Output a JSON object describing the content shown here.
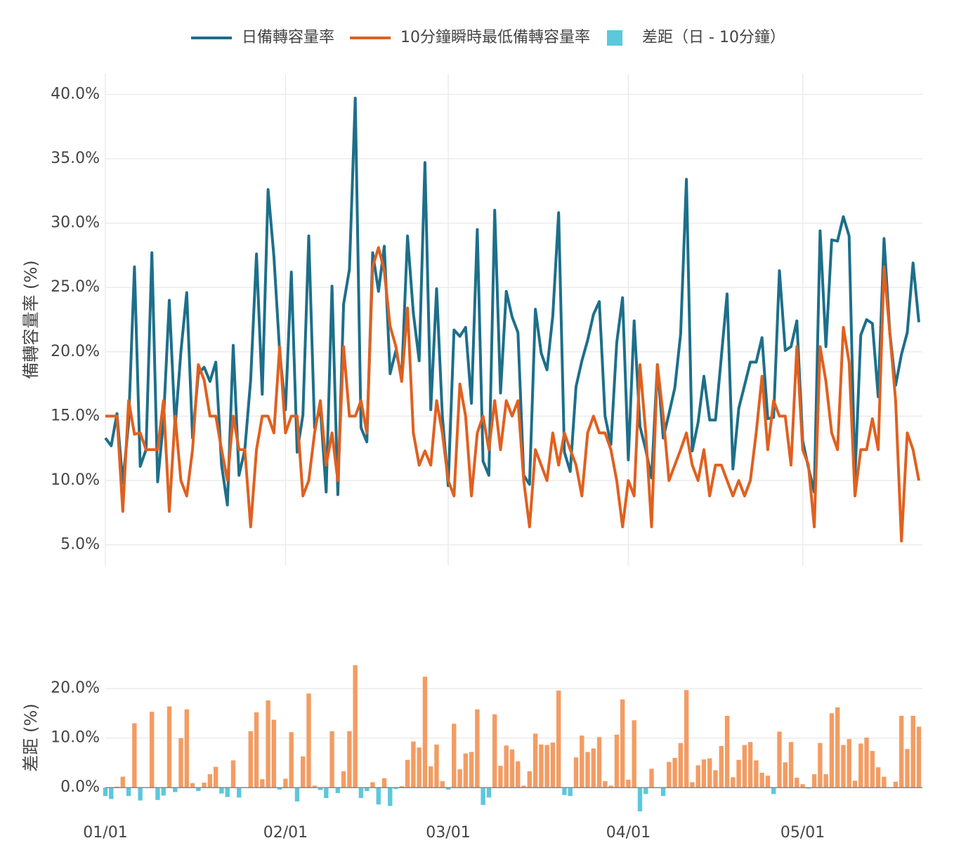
{
  "chart_data": [
    {
      "type": "line",
      "ylabel": "備轉容量率 (%)",
      "x": [
        "01/01",
        "01/02",
        "01/03",
        "01/04",
        "01/05",
        "01/06",
        "01/07",
        "01/08",
        "01/09",
        "01/10",
        "01/11",
        "01/12",
        "01/13",
        "01/14",
        "01/15",
        "01/16",
        "01/17",
        "01/18",
        "01/19",
        "01/20",
        "01/21",
        "01/22",
        "01/23",
        "01/24",
        "01/25",
        "01/26",
        "01/27",
        "01/28",
        "01/29",
        "01/30",
        "01/31",
        "02/01",
        "02/02",
        "02/03",
        "02/04",
        "02/05",
        "02/06",
        "02/07",
        "02/08",
        "02/09",
        "02/10",
        "02/11",
        "02/12",
        "02/13",
        "02/14",
        "02/15",
        "02/16",
        "02/17",
        "02/18",
        "02/19",
        "02/20",
        "02/21",
        "02/22",
        "02/23",
        "02/24",
        "02/25",
        "02/26",
        "02/27",
        "02/28",
        "03/01",
        "03/02",
        "03/03",
        "03/04",
        "03/05",
        "03/06",
        "03/07",
        "03/08",
        "03/09",
        "03/10",
        "03/11",
        "03/12",
        "03/13",
        "03/14",
        "03/15",
        "03/16",
        "03/17",
        "03/18",
        "03/19",
        "03/20",
        "03/21",
        "03/22",
        "03/23",
        "03/24",
        "03/25",
        "03/26",
        "03/27",
        "03/28",
        "03/29",
        "03/30",
        "03/31",
        "04/01",
        "04/02",
        "04/03",
        "04/04",
        "04/05",
        "04/06",
        "04/07",
        "04/08",
        "04/09",
        "04/10",
        "04/11",
        "04/12",
        "04/13",
        "04/14",
        "04/15",
        "04/16",
        "04/17",
        "04/18",
        "04/19",
        "04/20",
        "04/21",
        "04/22",
        "04/23",
        "04/24",
        "04/25",
        "04/26",
        "04/27",
        "04/28",
        "04/29",
        "04/30",
        "05/01",
        "05/02",
        "05/03",
        "05/04",
        "05/05",
        "05/06",
        "05/07",
        "05/08",
        "05/09",
        "05/10",
        "05/11",
        "05/12",
        "05/13",
        "05/14",
        "05/15",
        "05/16",
        "05/17",
        "05/18",
        "05/19",
        "05/20",
        "05/21"
      ],
      "series": [
        {
          "name": "日備轉容量率",
          "color": "#1d6f8a",
          "values": [
            13.3,
            12.7,
            15.2,
            9.8,
            14.5,
            26.6,
            11.1,
            12.4,
            27.7,
            9.9,
            14.6,
            24.0,
            14.1,
            20.0,
            24.6,
            13.3,
            18.3,
            18.8,
            17.7,
            19.2,
            11.2,
            8.1,
            20.5,
            10.4,
            12.4,
            17.8,
            27.6,
            16.7,
            32.6,
            27.4,
            20.0,
            15.5,
            26.2,
            12.2,
            15.1,
            29.0,
            14.1,
            15.7,
            9.1,
            25.1,
            8.9,
            23.7,
            26.4,
            39.7,
            14.1,
            13.0,
            27.7,
            24.7,
            28.2,
            18.3,
            20.1,
            18.0,
            29.0,
            23.0,
            19.3,
            34.7,
            15.5,
            24.9,
            15.0,
            9.6,
            21.7,
            21.2,
            21.9,
            16.0,
            29.5,
            11.5,
            10.4,
            31.0,
            16.8,
            24.7,
            22.7,
            21.5,
            10.4,
            9.7,
            23.3,
            19.9,
            18.6,
            22.8,
            30.8,
            12.2,
            10.7,
            17.3,
            19.3,
            20.9,
            22.9,
            23.9,
            15.0,
            12.8,
            20.7,
            24.2,
            11.6,
            22.4,
            14.2,
            12.4,
            10.2,
            19.0,
            13.3,
            15.2,
            17.2,
            21.4,
            33.4,
            12.3,
            14.5,
            18.1,
            14.7,
            14.7,
            19.6,
            24.5,
            10.9,
            15.6,
            17.4,
            19.2,
            19.2,
            21.1,
            14.8,
            14.9,
            26.3,
            20.1,
            20.4,
            22.4,
            13.1,
            11.0,
            9.1,
            29.4,
            20.4,
            28.7,
            28.6,
            30.5,
            29.0,
            10.2,
            21.3,
            22.5,
            22.2,
            16.5,
            28.8,
            21.5,
            17.4,
            19.8,
            21.5,
            26.9,
            22.3
          ]
        },
        {
          "name": "10分鐘瞬時最低備轉容量率",
          "color": "#e0601f",
          "values": [
            15,
            15,
            15,
            7.6,
            16.2,
            13.6,
            13.7,
            12.4,
            12.4,
            12.4,
            16.2,
            7.6,
            15,
            10,
            8.8,
            12.4,
            19,
            17.8,
            15,
            15,
            12.4,
            10,
            15,
            12.4,
            12.4,
            6.4,
            12.4,
            15,
            15,
            13.7,
            20.4,
            13.7,
            15,
            15,
            8.8,
            10,
            13.7,
            16.2,
            11.2,
            13.7,
            10,
            20.4,
            15,
            15,
            16.2,
            13.7,
            26.6,
            28.1,
            26.3,
            22,
            20.4,
            17.7,
            23.4,
            13.7,
            11.2,
            12.3,
            11.2,
            16.2,
            13.7,
            10,
            8.8,
            17.5,
            15,
            8.8,
            13.7,
            15,
            12.4,
            16.2,
            12.4,
            16.2,
            15,
            16.2,
            10,
            6.4,
            12.4,
            11.2,
            10,
            13.7,
            11.2,
            13.7,
            12.4,
            11.2,
            8.8,
            13.7,
            15,
            13.7,
            13.7,
            12.4,
            10,
            6.4,
            10,
            8.8,
            19,
            13.7,
            6.4,
            19,
            15,
            10,
            11.2,
            12.4,
            13.7,
            11.2,
            10,
            12.4,
            8.8,
            11.2,
            11.2,
            10,
            8.8,
            10,
            8.8,
            10,
            13.7,
            18.1,
            12.4,
            16.2,
            15,
            15,
            11.2,
            20.4,
            12.4,
            11.2,
            6.4,
            20.4,
            17.7,
            13.7,
            12.4,
            21.9,
            19.2,
            8.8,
            12.4,
            12.4,
            14.8,
            12.4,
            26.6,
            21.5,
            16.2,
            5.3,
            13.7,
            12.4,
            10
          ]
        }
      ],
      "ylim": [
        3.4,
        41.6
      ],
      "yticks": [
        {
          "value": 5,
          "label": "5.0%"
        },
        {
          "value": 10,
          "label": "10.0%"
        },
        {
          "value": 15,
          "label": "15.0%"
        },
        {
          "value": 20,
          "label": "20.0%"
        },
        {
          "value": 25,
          "label": "25.0%"
        },
        {
          "value": 30,
          "label": "30.0%"
        },
        {
          "value": 35,
          "label": "35.0%"
        },
        {
          "value": 40,
          "label": "40.0%"
        }
      ],
      "grid": true
    },
    {
      "type": "bar",
      "ylabel": "差距 (%)",
      "x": [
        "01/01",
        "01/02",
        "01/03",
        "01/04",
        "01/05",
        "01/06",
        "01/07",
        "01/08",
        "01/09",
        "01/10",
        "01/11",
        "01/12",
        "01/13",
        "01/14",
        "01/15",
        "01/16",
        "01/17",
        "01/18",
        "01/19",
        "01/20",
        "01/21",
        "01/22",
        "01/23",
        "01/24",
        "01/25",
        "01/26",
        "01/27",
        "01/28",
        "01/29",
        "01/30",
        "01/31",
        "02/01",
        "02/02",
        "02/03",
        "02/04",
        "02/05",
        "02/06",
        "02/07",
        "02/08",
        "02/09",
        "02/10",
        "02/11",
        "02/12",
        "02/13",
        "02/14",
        "02/15",
        "02/16",
        "02/17",
        "02/18",
        "02/19",
        "02/20",
        "02/21",
        "02/22",
        "02/23",
        "02/24",
        "02/25",
        "02/26",
        "02/27",
        "02/28",
        "03/01",
        "03/02",
        "03/03",
        "03/04",
        "03/05",
        "03/06",
        "03/07",
        "03/08",
        "03/09",
        "03/10",
        "03/11",
        "03/12",
        "03/13",
        "03/14",
        "03/15",
        "03/16",
        "03/17",
        "03/18",
        "03/19",
        "03/20",
        "03/21",
        "03/22",
        "03/23",
        "03/24",
        "03/25",
        "03/26",
        "03/27",
        "03/28",
        "03/29",
        "03/30",
        "03/31",
        "04/01",
        "04/02",
        "04/03",
        "04/04",
        "04/05",
        "04/06",
        "04/07",
        "04/08",
        "04/09",
        "04/10",
        "04/11",
        "04/12",
        "04/13",
        "04/14",
        "04/15",
        "04/16",
        "04/17",
        "04/18",
        "04/19",
        "04/20",
        "04/21",
        "04/22",
        "04/23",
        "04/24",
        "04/25",
        "04/26",
        "04/27",
        "04/28",
        "04/29",
        "04/30",
        "05/01",
        "05/02",
        "05/03",
        "05/04",
        "05/05",
        "05/06",
        "05/07",
        "05/08",
        "05/09",
        "05/10",
        "05/11",
        "05/12",
        "05/13",
        "05/14",
        "05/15",
        "05/16",
        "05/17",
        "05/18",
        "05/19",
        "05/20",
        "05/21"
      ],
      "series": [
        {
          "name": "差距（日 - 10分鐘）",
          "color": "#5bc8dc",
          "positive_color": "#f39c63",
          "values": [
            -1.7,
            -2.3,
            0.2,
            2.2,
            -1.7,
            13.0,
            -2.6,
            0.0,
            15.3,
            -2.5,
            -1.6,
            16.4,
            -0.9,
            10.0,
            15.8,
            0.9,
            -0.7,
            1.0,
            2.7,
            4.2,
            -1.2,
            -1.9,
            5.5,
            -2.0,
            0.0,
            11.4,
            15.2,
            1.7,
            17.6,
            13.7,
            -0.4,
            1.8,
            11.2,
            -2.8,
            6.3,
            19.0,
            0.4,
            -0.5,
            -2.1,
            11.4,
            -1.1,
            3.3,
            11.4,
            24.7,
            -2.1,
            -0.7,
            1.1,
            -3.4,
            1.9,
            -3.7,
            -0.3,
            0.3,
            5.6,
            9.3,
            8.1,
            22.4,
            4.3,
            8.7,
            1.3,
            -0.4,
            12.9,
            3.7,
            6.9,
            7.2,
            15.8,
            -3.5,
            -2.0,
            14.8,
            4.4,
            8.5,
            7.7,
            5.3,
            0.4,
            3.3,
            10.9,
            8.7,
            8.6,
            9.1,
            19.6,
            -1.5,
            -1.7,
            6.1,
            10.5,
            7.2,
            7.9,
            10.2,
            1.3,
            0.4,
            10.7,
            17.8,
            1.6,
            13.6,
            -4.8,
            -1.3,
            3.8,
            0.0,
            -1.7,
            5.2,
            6.0,
            9.0,
            19.7,
            1.1,
            4.5,
            5.7,
            5.9,
            3.5,
            8.4,
            14.5,
            2.1,
            5.6,
            8.6,
            9.2,
            5.5,
            3.0,
            2.4,
            -1.3,
            11.3,
            5.1,
            9.2,
            2.0,
            0.7,
            -0.2,
            2.7,
            9.0,
            2.7,
            15.0,
            16.2,
            8.6,
            9.8,
            1.4,
            8.9,
            10.1,
            7.4,
            4.1,
            2.2,
            0.0,
            1.2,
            14.5,
            7.8,
            14.5,
            12.3
          ]
        }
      ],
      "ylim": [
        -5.5,
        25.7
      ],
      "yticks": [
        {
          "value": 0,
          "label": "0.0%"
        },
        {
          "value": 10,
          "label": "10.0%"
        },
        {
          "value": 20,
          "label": "20.0%"
        }
      ],
      "xticks": [
        "01/01",
        "02/01",
        "03/01",
        "04/01",
        "05/01"
      ],
      "grid": true
    }
  ]
}
